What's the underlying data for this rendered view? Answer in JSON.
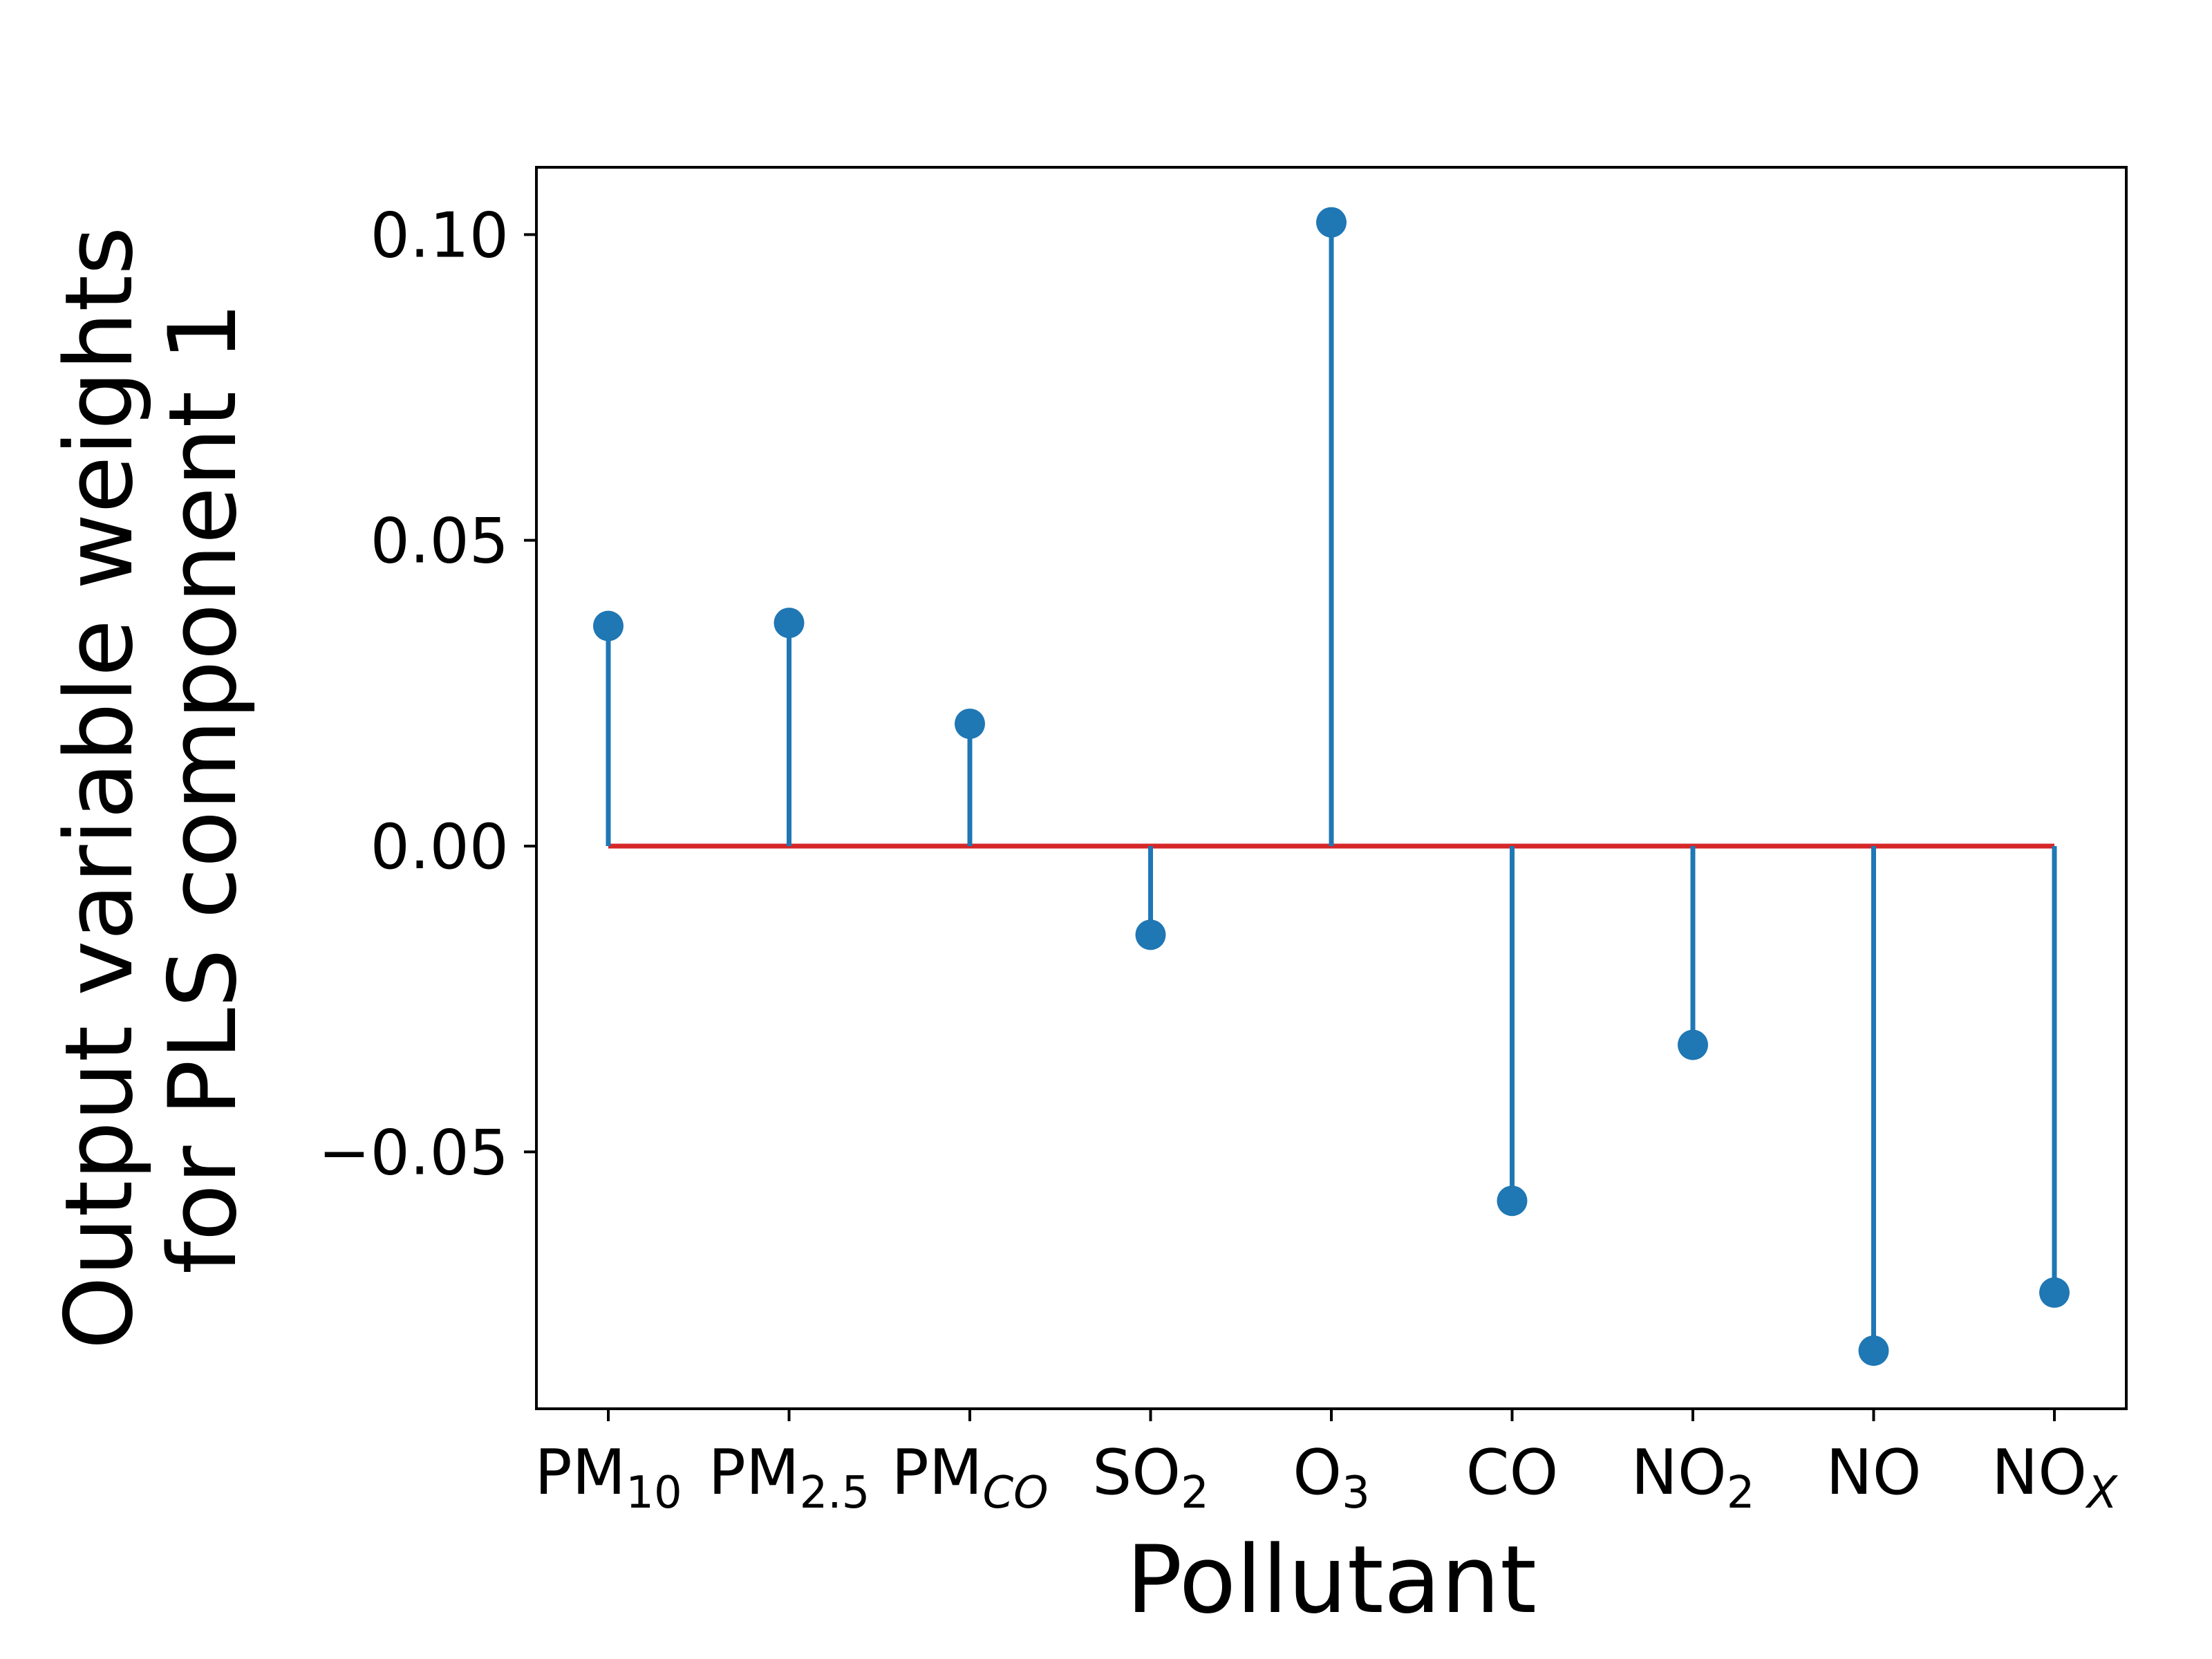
{
  "chart_data": {
    "type": "stem",
    "xlabel": "Pollutant",
    "ylabel": [
      "Output variable weights",
      "for PLS component 1"
    ],
    "categories": [
      {
        "main": "PM",
        "sub": "10",
        "italic": false
      },
      {
        "main": "PM",
        "sub": "2.5",
        "italic": false
      },
      {
        "main": "PM",
        "sub": "CO",
        "italic": true
      },
      {
        "main": "SO",
        "sub": "2",
        "italic": false
      },
      {
        "main": "O",
        "sub": "3",
        "italic": false
      },
      {
        "main": "CO",
        "sub": "",
        "italic": false
      },
      {
        "main": "NO",
        "sub": "2",
        "italic": false
      },
      {
        "main": "NO",
        "sub": "",
        "italic": false
      },
      {
        "main": "NO",
        "sub": "X",
        "italic": true
      }
    ],
    "values": [
      0.036,
      0.0365,
      0.02,
      -0.0145,
      0.102,
      -0.058,
      -0.0325,
      -0.0825,
      -0.073
    ],
    "ylim": [
      -0.092,
      0.111
    ],
    "yticks": [
      -0.05,
      0.0,
      0.05,
      0.1
    ],
    "ytick_labels": [
      "−0.05",
      "0.00",
      "0.05",
      "0.10"
    ],
    "grid": false,
    "colors": {
      "stem": "#1f77b4",
      "baseline": "#d62728",
      "axes": "#000000"
    }
  }
}
